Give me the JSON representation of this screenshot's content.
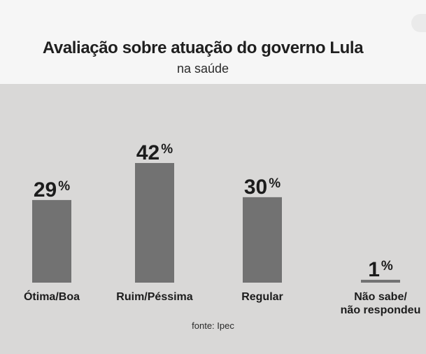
{
  "chart_data": {
    "type": "bar",
    "title": "Avaliação sobre atuação do governo Lula",
    "subtitle": "na saúde",
    "categories": [
      [
        "Ótima/Boa"
      ],
      [
        "Ruim/Péssima"
      ],
      [
        "Regular"
      ],
      [
        "Não sabe/",
        "não respondeu"
      ]
    ],
    "values": [
      29,
      42,
      30,
      1
    ],
    "value_labels": [
      {
        "number": "29",
        "unit": "%"
      },
      {
        "number": "42",
        "unit": "%"
      },
      {
        "number": "30",
        "unit": "%"
      },
      {
        "number": "1",
        "unit": "%"
      }
    ],
    "ylim": [
      0,
      42
    ],
    "source": "fonte: Ipec",
    "colors": {
      "bar": "#727272",
      "background": "#d9d8d7",
      "header": "#f6f6f6"
    }
  }
}
